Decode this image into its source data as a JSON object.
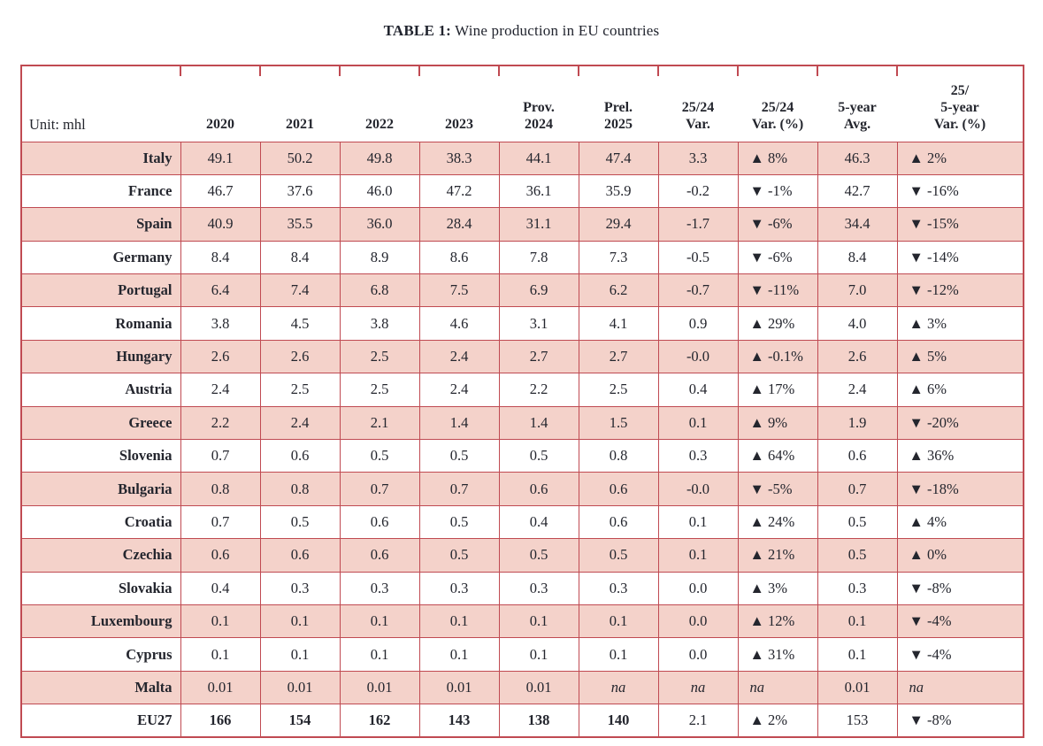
{
  "title": {
    "label": "TABLE 1:",
    "text": " Wine production in EU countries"
  },
  "table": {
    "unit_label": "Unit: mhl",
    "columns": [
      "2020",
      "2021",
      "2022",
      "2023",
      "Prov.\n2024",
      "Prel.\n2025",
      "25/24\nVar.",
      "25/24\nVar. (%)",
      "5-year\nAvg.",
      "25/\n5-year\nVar. (%)"
    ],
    "up_triangle_icon": "▲",
    "down_triangle_icon": "▼",
    "rows": [
      {
        "country": "Italy",
        "values": [
          "49.1",
          "50.2",
          "49.8",
          "38.3",
          "44.1",
          "47.4",
          "3.3",
          "▲ 8%",
          "46.3",
          "▲ 2%"
        ]
      },
      {
        "country": "France",
        "values": [
          "46.7",
          "37.6",
          "46.0",
          "47.2",
          "36.1",
          "35.9",
          "-0.2",
          "▼ -1%",
          "42.7",
          "▼ -16%"
        ]
      },
      {
        "country": "Spain",
        "values": [
          "40.9",
          "35.5",
          "36.0",
          "28.4",
          "31.1",
          "29.4",
          "-1.7",
          "▼ -6%",
          "34.4",
          "▼ -15%"
        ]
      },
      {
        "country": "Germany",
        "values": [
          "8.4",
          "8.4",
          "8.9",
          "8.6",
          "7.8",
          "7.3",
          "-0.5",
          "▼ -6%",
          "8.4",
          "▼ -14%"
        ]
      },
      {
        "country": "Portugal",
        "values": [
          "6.4",
          "7.4",
          "6.8",
          "7.5",
          "6.9",
          "6.2",
          "-0.7",
          "▼ -11%",
          "7.0",
          "▼ -12%"
        ]
      },
      {
        "country": "Romania",
        "values": [
          "3.8",
          "4.5",
          "3.8",
          "4.6",
          "3.1",
          "4.1",
          "0.9",
          "▲ 29%",
          "4.0",
          "▲ 3%"
        ]
      },
      {
        "country": "Hungary",
        "values": [
          "2.6",
          "2.6",
          "2.5",
          "2.4",
          "2.7",
          "2.7",
          "-0.0",
          "▲ -0.1%",
          "2.6",
          "▲ 5%"
        ]
      },
      {
        "country": "Austria",
        "values": [
          "2.4",
          "2.5",
          "2.5",
          "2.4",
          "2.2",
          "2.5",
          "0.4",
          "▲ 17%",
          "2.4",
          "▲ 6%"
        ]
      },
      {
        "country": "Greece",
        "values": [
          "2.2",
          "2.4",
          "2.1",
          "1.4",
          "1.4",
          "1.5",
          "0.1",
          "▲ 9%",
          "1.9",
          "▼ -20%"
        ]
      },
      {
        "country": "Slovenia",
        "values": [
          "0.7",
          "0.6",
          "0.5",
          "0.5",
          "0.5",
          "0.8",
          "0.3",
          "▲ 64%",
          "0.6",
          "▲ 36%"
        ]
      },
      {
        "country": "Bulgaria",
        "values": [
          "0.8",
          "0.8",
          "0.7",
          "0.7",
          "0.6",
          "0.6",
          "-0.0",
          "▼ -5%",
          "0.7",
          "▼ -18%"
        ]
      },
      {
        "country": "Croatia",
        "values": [
          "0.7",
          "0.5",
          "0.6",
          "0.5",
          "0.4",
          "0.6",
          "0.1",
          "▲ 24%",
          "0.5",
          "▲ 4%"
        ]
      },
      {
        "country": "Czechia",
        "values": [
          "0.6",
          "0.6",
          "0.6",
          "0.5",
          "0.5",
          "0.5",
          "0.1",
          "▲ 21%",
          "0.5",
          "▲ 0%"
        ]
      },
      {
        "country": "Slovakia",
        "values": [
          "0.4",
          "0.3",
          "0.3",
          "0.3",
          "0.3",
          "0.3",
          "0.0",
          "▲ 3%",
          "0.3",
          "▼ -8%"
        ]
      },
      {
        "country": "Luxembourg",
        "values": [
          "0.1",
          "0.1",
          "0.1",
          "0.1",
          "0.1",
          "0.1",
          "0.0",
          "▲ 12%",
          "0.1",
          "▼ -4%"
        ]
      },
      {
        "country": "Cyprus",
        "values": [
          "0.1",
          "0.1",
          "0.1",
          "0.1",
          "0.1",
          "0.1",
          "0.0",
          "▲ 31%",
          "0.1",
          "▼ -4%"
        ]
      },
      {
        "country": "Malta",
        "values": [
          "0.01",
          "0.01",
          "0.01",
          "0.01",
          "0.01",
          "na",
          "na",
          "na",
          "0.01",
          "na"
        ]
      },
      {
        "country": "EU27",
        "values": [
          "166",
          "154",
          "162",
          "143",
          "138",
          "140",
          "2.1",
          "▲ 2%",
          "153",
          "▼ -8%"
        ],
        "is_total": true
      }
    ]
  },
  "colors": {
    "border": "#c04a52",
    "row_pink": "#f4d2ca",
    "text": "#24262e"
  }
}
